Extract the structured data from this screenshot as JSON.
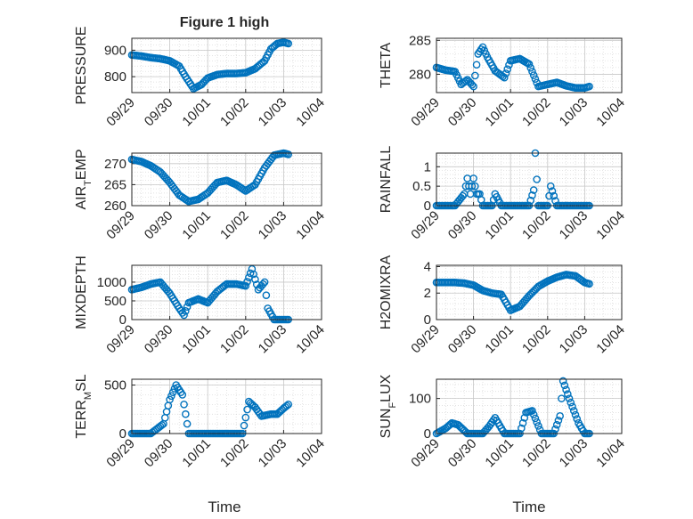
{
  "figure": {
    "title": "Figure 1 high",
    "marker_color": "#0072BD",
    "grid": "major and minor dotted",
    "x_axis_label": "Time"
  },
  "chart_data": [
    {
      "type": "scatter",
      "ylabel": "PRESSURE",
      "yticks": [
        800,
        900
      ],
      "ylim": [
        740,
        945
      ],
      "xlim": [
        "09/29",
        "10/04"
      ],
      "xticks": [
        "09/29",
        "09/30",
        "10/01",
        "10/02",
        "10/03",
        "10/04"
      ],
      "x": [
        "09/29 00:00",
        "09/29 06:00",
        "09/29 12:00",
        "09/29 18:00",
        "09/30 00:00",
        "09/30 06:00",
        "09/30 10:00",
        "09/30 15:00",
        "09/30 20:00",
        "10/01 00:00",
        "10/01 06:00",
        "10/01 12:00",
        "10/01 18:00",
        "10/02 00:00",
        "10/02 06:00",
        "10/02 12:00",
        "10/02 16:00",
        "10/02 20:00",
        "10/03 00:00",
        "10/03 03:00"
      ],
      "values": [
        882,
        878,
        872,
        868,
        860,
        840,
        800,
        755,
        770,
        795,
        808,
        812,
        812,
        815,
        830,
        860,
        905,
        925,
        930,
        925
      ]
    },
    {
      "type": "scatter",
      "ylabel": "THETA",
      "yticks": [
        280,
        285
      ],
      "ylim": [
        277.3,
        285.3
      ],
      "xlim": [
        "09/29",
        "10/04"
      ],
      "xticks": [
        "09/29",
        "09/30",
        "10/01",
        "10/02",
        "10/03",
        "10/04"
      ],
      "x": [
        "09/29 00:00",
        "09/29 06:00",
        "09/29 12:00",
        "09/29 16:00",
        "09/29 20:00",
        "09/30 00:00",
        "09/30 03:00",
        "09/30 06:00",
        "09/30 09:00",
        "09/30 14:00",
        "09/30 20:00",
        "10/01 00:00",
        "10/01 06:00",
        "10/01 12:00",
        "10/01 18:00",
        "10/02 00:00",
        "10/02 06:00",
        "10/02 12:00",
        "10/02 18:00",
        "10/03 00:00",
        "10/03 03:00"
      ],
      "values": [
        281,
        280.6,
        280.4,
        278.5,
        279.2,
        278.2,
        283,
        284,
        282.5,
        280.5,
        279.5,
        282,
        282.3,
        281.5,
        278.2,
        278.5,
        278.8,
        278.3,
        278.0,
        278.0,
        278.2
      ]
    },
    {
      "type": "scatter",
      "ylabel": "AIR_TEMP",
      "yticks": [
        260,
        265,
        270
      ],
      "ylim": [
        260,
        272.5
      ],
      "xlim": [
        "09/29",
        "10/04"
      ],
      "xticks": [
        "09/29",
        "09/30",
        "10/01",
        "10/02",
        "10/03",
        "10/04"
      ],
      "x": [
        "09/29 00:00",
        "09/29 06:00",
        "09/29 12:00",
        "09/29 18:00",
        "09/30 00:00",
        "09/30 06:00",
        "09/30 12:00",
        "09/30 18:00",
        "10/01 00:00",
        "10/01 06:00",
        "10/01 12:00",
        "10/01 18:00",
        "10/02 00:00",
        "10/02 06:00",
        "10/02 12:00",
        "10/02 18:00",
        "10/03 00:00",
        "10/03 03:00"
      ],
      "values": [
        271,
        270.5,
        269.5,
        268,
        265.5,
        262.5,
        261,
        261.5,
        263,
        265.5,
        266,
        265,
        263.5,
        265,
        269,
        272,
        272.5,
        272.2
      ]
    },
    {
      "type": "scatter",
      "ylabel": "RAINFALL",
      "yticks": [
        0,
        0.5,
        1
      ],
      "ylim": [
        0,
        1.35
      ],
      "xlim": [
        "09/29",
        "10/04"
      ],
      "xticks": [
        "09/29",
        "09/30",
        "10/01",
        "10/02",
        "10/03",
        "10/04"
      ],
      "x": [
        "09/29 00:00",
        "09/29 06:00",
        "09/29 12:00",
        "09/29 18:00",
        "09/29 20:00",
        "09/29 22:00",
        "09/30 00:00",
        "09/30 02:00",
        "09/30 04:00",
        "09/30 06:00",
        "09/30 12:00",
        "09/30 14:00",
        "09/30 18:00",
        "10/01 00:00",
        "10/01 06:00",
        "10/01 12:00",
        "10/01 15:00",
        "10/01 16:00",
        "10/01 18:00",
        "10/02 00:00",
        "10/02 02:00",
        "10/02 06:00",
        "10/02 12:00",
        "10/02 18:00",
        "10/03 00:00",
        "10/03 03:00"
      ],
      "values": [
        0,
        0,
        0,
        0.3,
        0.7,
        0.3,
        0.7,
        0.3,
        0.3,
        0,
        0,
        0.3,
        0,
        0,
        0,
        0,
        0.4,
        1.35,
        0,
        0,
        0.5,
        0,
        0,
        0,
        0,
        0
      ]
    },
    {
      "type": "scatter",
      "ylabel": "MIXDEPTH",
      "yticks": [
        0,
        500,
        1000
      ],
      "ylim": [
        0,
        1450
      ],
      "xlim": [
        "09/29",
        "10/04"
      ],
      "xticks": [
        "09/29",
        "09/30",
        "10/01",
        "10/02",
        "10/03",
        "10/04"
      ],
      "x": [
        "09/29 00:00",
        "09/29 06:00",
        "09/29 12:00",
        "09/29 18:00",
        "09/30 00:00",
        "09/30 06:00",
        "09/30 09:00",
        "09/30 12:00",
        "09/30 18:00",
        "10/01 00:00",
        "10/01 06:00",
        "10/01 12:00",
        "10/01 18:00",
        "10/02 00:00",
        "10/02 04:00",
        "10/02 08:00",
        "10/02 12:00",
        "10/02 14:00",
        "10/02 18:00",
        "10/03 00:00",
        "10/03 03:00"
      ],
      "values": [
        800,
        860,
        950,
        1000,
        700,
        300,
        120,
        450,
        550,
        450,
        750,
        950,
        950,
        900,
        1350,
        800,
        1000,
        300,
        0,
        0,
        0
      ]
    },
    {
      "type": "scatter",
      "ylabel": "H2OMIXRA",
      "yticks": [
        0,
        2,
        4
      ],
      "ylim": [
        0,
        4.1
      ],
      "xlim": [
        "09/29",
        "10/04"
      ],
      "xticks": [
        "09/29",
        "09/30",
        "10/01",
        "10/02",
        "10/03",
        "10/04"
      ],
      "x": [
        "09/29 00:00",
        "09/29 06:00",
        "09/29 12:00",
        "09/29 18:00",
        "09/30 00:00",
        "09/30 06:00",
        "09/30 12:00",
        "09/30 18:00",
        "10/01 00:00",
        "10/01 06:00",
        "10/01 12:00",
        "10/01 18:00",
        "10/02 00:00",
        "10/02 06:00",
        "10/02 12:00",
        "10/02 18:00",
        "10/03 00:00",
        "10/03 03:00"
      ],
      "values": [
        2.8,
        2.8,
        2.8,
        2.75,
        2.6,
        2.2,
        2.0,
        1.9,
        0.7,
        1.0,
        1.8,
        2.5,
        2.9,
        3.2,
        3.4,
        3.3,
        2.8,
        2.7
      ]
    },
    {
      "type": "scatter",
      "ylabel": "TERR_MSL",
      "yticks": [
        0,
        500
      ],
      "ylim": [
        0,
        560
      ],
      "xlim": [
        "09/29",
        "10/04"
      ],
      "xticks": [
        "09/29",
        "09/30",
        "10/01",
        "10/02",
        "10/03",
        "10/04"
      ],
      "x": [
        "09/29 00:00",
        "09/29 12:00",
        "09/29 20:00",
        "09/30 00:00",
        "09/30 04:00",
        "09/30 08:00",
        "09/30 12:00",
        "09/30 18:00",
        "10/01 00:00",
        "10/01 12:00",
        "10/01 22:00",
        "10/02 02:00",
        "10/02 06:00",
        "10/02 10:00",
        "10/02 16:00",
        "10/02 20:00",
        "10/03 00:00",
        "10/03 03:00"
      ],
      "values": [
        0,
        0,
        100,
        350,
        500,
        400,
        0,
        0,
        0,
        0,
        0,
        330,
        270,
        180,
        200,
        200,
        260,
        300
      ]
    },
    {
      "type": "scatter",
      "ylabel": "SUN_FLUX",
      "yticks": [
        0,
        100
      ],
      "ylim": [
        0,
        155
      ],
      "xlim": [
        "09/29",
        "10/04"
      ],
      "xticks": [
        "09/29",
        "09/30",
        "10/01",
        "10/02",
        "10/03",
        "10/04"
      ],
      "x": [
        "09/29 00:00",
        "09/29 06:00",
        "09/29 10:00",
        "09/29 14:00",
        "09/29 20:00",
        "09/30 06:00",
        "09/30 10:00",
        "09/30 14:00",
        "09/30 20:00",
        "10/01 06:00",
        "10/01 10:00",
        "10/01 14:00",
        "10/01 20:00",
        "10/02 04:00",
        "10/02 08:00",
        "10/02 10:00",
        "10/02 14:00",
        "10/02 20:00",
        "10/03 00:00",
        "10/03 03:00"
      ],
      "values": [
        0,
        15,
        30,
        25,
        0,
        0,
        20,
        45,
        0,
        0,
        60,
        65,
        0,
        0,
        50,
        150,
        100,
        30,
        0,
        0
      ]
    }
  ]
}
